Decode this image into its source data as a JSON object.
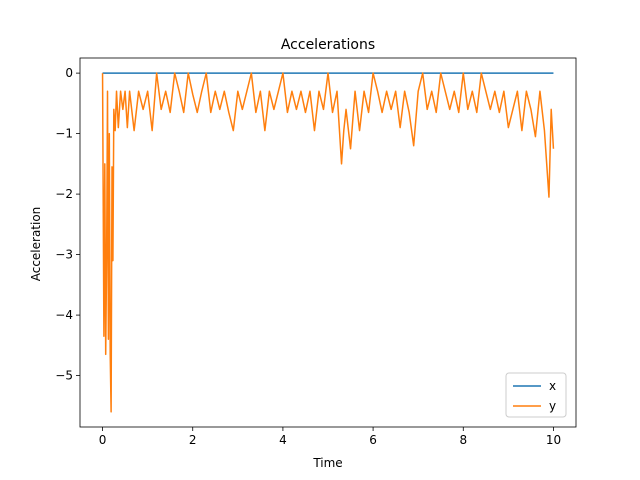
{
  "chart_data": {
    "type": "line",
    "title": "Accelerations",
    "xlabel": "Time",
    "ylabel": "Acceleration",
    "xlim": [
      -0.5,
      10.5
    ],
    "ylim": [
      -5.85,
      0.25
    ],
    "xticks": [
      0,
      2,
      4,
      6,
      8,
      10
    ],
    "yticks": [
      0,
      -1,
      -2,
      -3,
      -4,
      -5
    ],
    "legend_position": "lower-right",
    "grid": false,
    "series": [
      {
        "name": "x",
        "color": "#1f77b4",
        "x": [
          0,
          10
        ],
        "values": [
          0,
          0
        ]
      },
      {
        "name": "y",
        "color": "#ff7f0e",
        "x": [
          0.0,
          0.03,
          0.05,
          0.07,
          0.09,
          0.11,
          0.13,
          0.15,
          0.17,
          0.19,
          0.21,
          0.23,
          0.25,
          0.28,
          0.31,
          0.35,
          0.4,
          0.45,
          0.5,
          0.55,
          0.6,
          0.7,
          0.8,
          0.9,
          1.0,
          1.1,
          1.2,
          1.3,
          1.4,
          1.5,
          1.6,
          1.7,
          1.8,
          1.9,
          2.0,
          2.1,
          2.2,
          2.3,
          2.4,
          2.5,
          2.6,
          2.7,
          2.8,
          2.9,
          3.0,
          3.1,
          3.2,
          3.3,
          3.4,
          3.5,
          3.6,
          3.7,
          3.8,
          3.9,
          4.0,
          4.1,
          4.2,
          4.3,
          4.4,
          4.5,
          4.6,
          4.7,
          4.8,
          4.9,
          5.0,
          5.1,
          5.2,
          5.3,
          5.35,
          5.4,
          5.5,
          5.6,
          5.7,
          5.8,
          5.9,
          6.0,
          6.1,
          6.2,
          6.3,
          6.4,
          6.5,
          6.6,
          6.7,
          6.8,
          6.9,
          7.0,
          7.1,
          7.2,
          7.3,
          7.4,
          7.5,
          7.6,
          7.7,
          7.8,
          7.9,
          8.0,
          8.1,
          8.2,
          8.3,
          8.4,
          8.5,
          8.6,
          8.7,
          8.8,
          8.9,
          9.0,
          9.1,
          9.2,
          9.3,
          9.4,
          9.5,
          9.6,
          9.7,
          9.8,
          9.85,
          9.9,
          9.95,
          10.0
        ],
        "values": [
          0.0,
          -4.35,
          -1.5,
          -4.65,
          -3.1,
          -0.3,
          -4.4,
          -1.0,
          -4.65,
          -5.6,
          -1.55,
          -3.1,
          -0.6,
          -0.95,
          -0.3,
          -0.9,
          -0.3,
          -0.6,
          -0.3,
          -0.9,
          -0.3,
          -0.95,
          -0.3,
          -0.6,
          -0.3,
          -0.95,
          0.0,
          -0.6,
          -0.3,
          -0.65,
          0.0,
          -0.3,
          -0.65,
          0.0,
          -0.35,
          -0.65,
          -0.3,
          0.0,
          -0.65,
          -0.3,
          -0.6,
          -0.3,
          -0.65,
          -0.95,
          -0.3,
          -0.6,
          -0.3,
          0.0,
          -0.65,
          -0.3,
          -0.95,
          -0.3,
          -0.6,
          -0.3,
          0.0,
          -0.65,
          -0.3,
          -0.6,
          -0.3,
          -0.65,
          -0.3,
          -0.95,
          -0.3,
          -0.6,
          0.0,
          -0.65,
          -0.3,
          -1.5,
          -0.95,
          -0.6,
          -1.25,
          -0.3,
          -0.95,
          -0.3,
          -0.65,
          0.0,
          -0.3,
          -0.65,
          -0.3,
          -0.6,
          -0.3,
          -0.9,
          -0.3,
          -0.65,
          -1.2,
          -0.3,
          0.0,
          -0.6,
          -0.3,
          -0.65,
          0.0,
          -0.3,
          -0.6,
          -0.3,
          -0.65,
          0.0,
          -0.6,
          -0.3,
          -0.65,
          0.0,
          -0.3,
          -0.6,
          -0.3,
          -0.65,
          -0.3,
          -0.9,
          -0.6,
          -0.3,
          -0.95,
          -0.3,
          -0.6,
          -1.05,
          -0.3,
          -0.95,
          -1.5,
          -2.05,
          -0.6,
          -1.25
        ]
      }
    ]
  }
}
